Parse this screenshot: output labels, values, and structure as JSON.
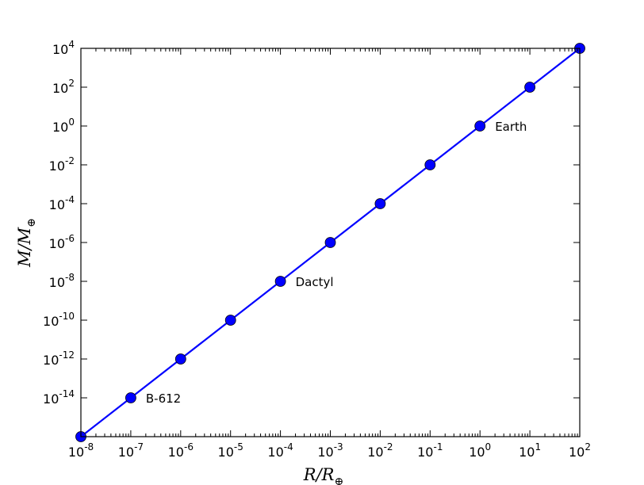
{
  "chart_data": {
    "type": "line",
    "title": "",
    "xlabel": {
      "main": "R/R",
      "sub": "⊕"
    },
    "ylabel": {
      "main": "M/M",
      "sub": "⊕"
    },
    "xscale": "log",
    "yscale": "log",
    "xlim": [
      1e-08,
      100.0
    ],
    "ylim": [
      1e-16,
      10000.0
    ],
    "grid": false,
    "x_tick_exponents": [
      -8,
      -7,
      -6,
      -5,
      -4,
      -3,
      -2,
      -1,
      0,
      1,
      2
    ],
    "y_tick_exponents": [
      -14,
      -12,
      -10,
      -8,
      -6,
      -4,
      -2,
      0,
      2,
      4
    ],
    "series": [
      {
        "color": "#0000ff",
        "marker": "circle",
        "x": [
          1e-08,
          1e-07,
          1e-06,
          1e-05,
          0.0001,
          0.001,
          0.01,
          0.1,
          1.0,
          10.0,
          100.0
        ],
        "y": [
          1e-16,
          1e-14,
          1e-12,
          1e-10,
          1e-08,
          1e-06,
          0.0001,
          0.01,
          1.0,
          100.0,
          10000.0
        ]
      }
    ],
    "annotations": [
      {
        "text": "B-612",
        "x": 1e-07,
        "y": 1e-14
      },
      {
        "text": "Dactyl",
        "x": 0.0001,
        "y": 1e-08
      },
      {
        "text": "Earth",
        "x": 1.0,
        "y": 1.0
      }
    ]
  }
}
